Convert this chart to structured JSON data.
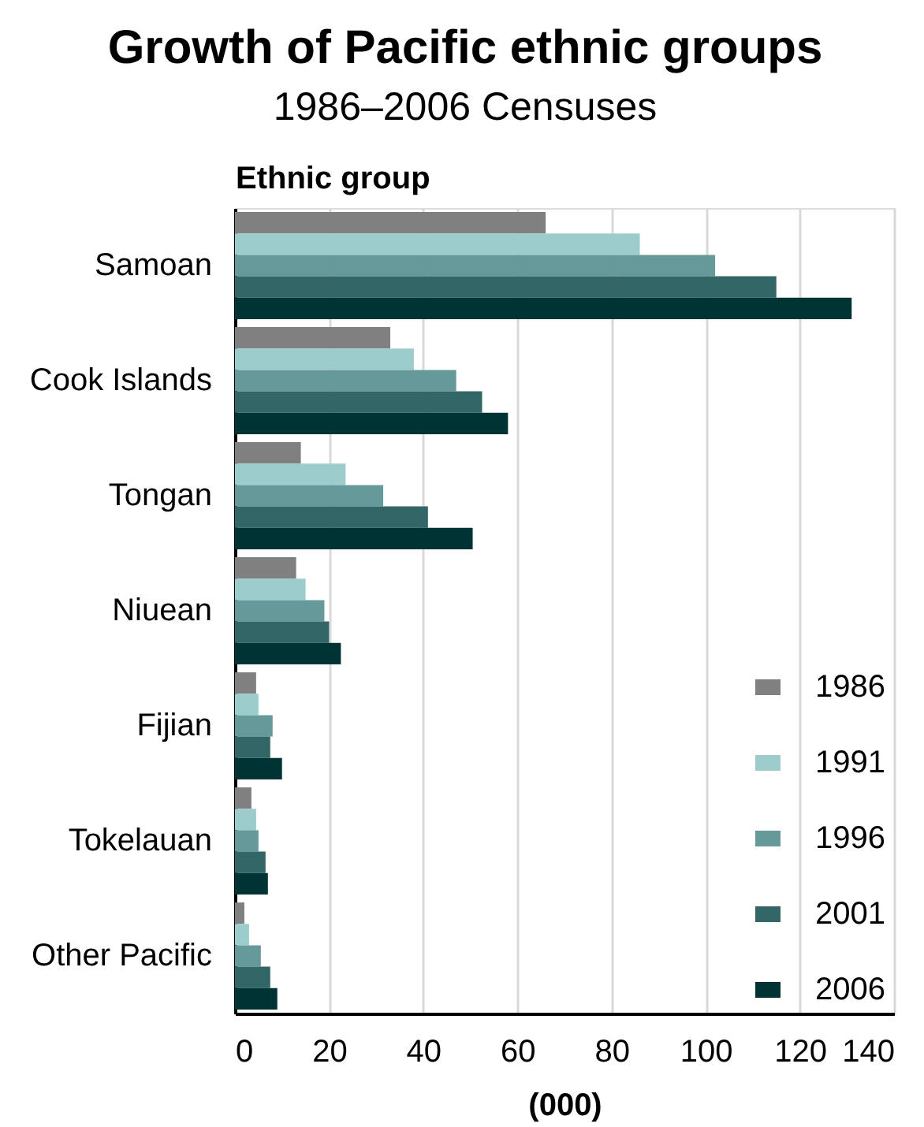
{
  "chart_data": {
    "type": "bar",
    "orientation": "horizontal",
    "title": "Growth of Pacific ethnic groups",
    "subtitle": "1986–2006 Censuses",
    "ylabel": "Ethnic group",
    "xlabel": "(000)",
    "categories": [
      "Samoan",
      "Cook Islands",
      "Tongan",
      "Niuean",
      "Fijian",
      "Tokelauan",
      "Other Pacific"
    ],
    "series": [
      {
        "name": "1986",
        "color": "#808080",
        "values": [
          66,
          33,
          14,
          13,
          4.5,
          3.5,
          2
        ]
      },
      {
        "name": "1991",
        "color": "#9ccccc",
        "values": [
          86,
          38,
          23.5,
          15,
          5,
          4.5,
          3
        ]
      },
      {
        "name": "1996",
        "color": "#669999",
        "values": [
          102,
          47,
          31.5,
          19,
          8,
          5,
          5.5
        ]
      },
      {
        "name": "2001",
        "color": "#336666",
        "values": [
          115,
          52.5,
          41,
          20,
          7.5,
          6.5,
          7.5
        ]
      },
      {
        "name": "2006",
        "color": "#003333",
        "values": [
          131,
          58,
          50.5,
          22.5,
          10,
          7,
          9
        ]
      }
    ],
    "xlim": [
      0,
      140
    ],
    "xticks": [
      0,
      20,
      40,
      60,
      80,
      100,
      120,
      140
    ],
    "grid": "x",
    "legend": "bottom right"
  }
}
